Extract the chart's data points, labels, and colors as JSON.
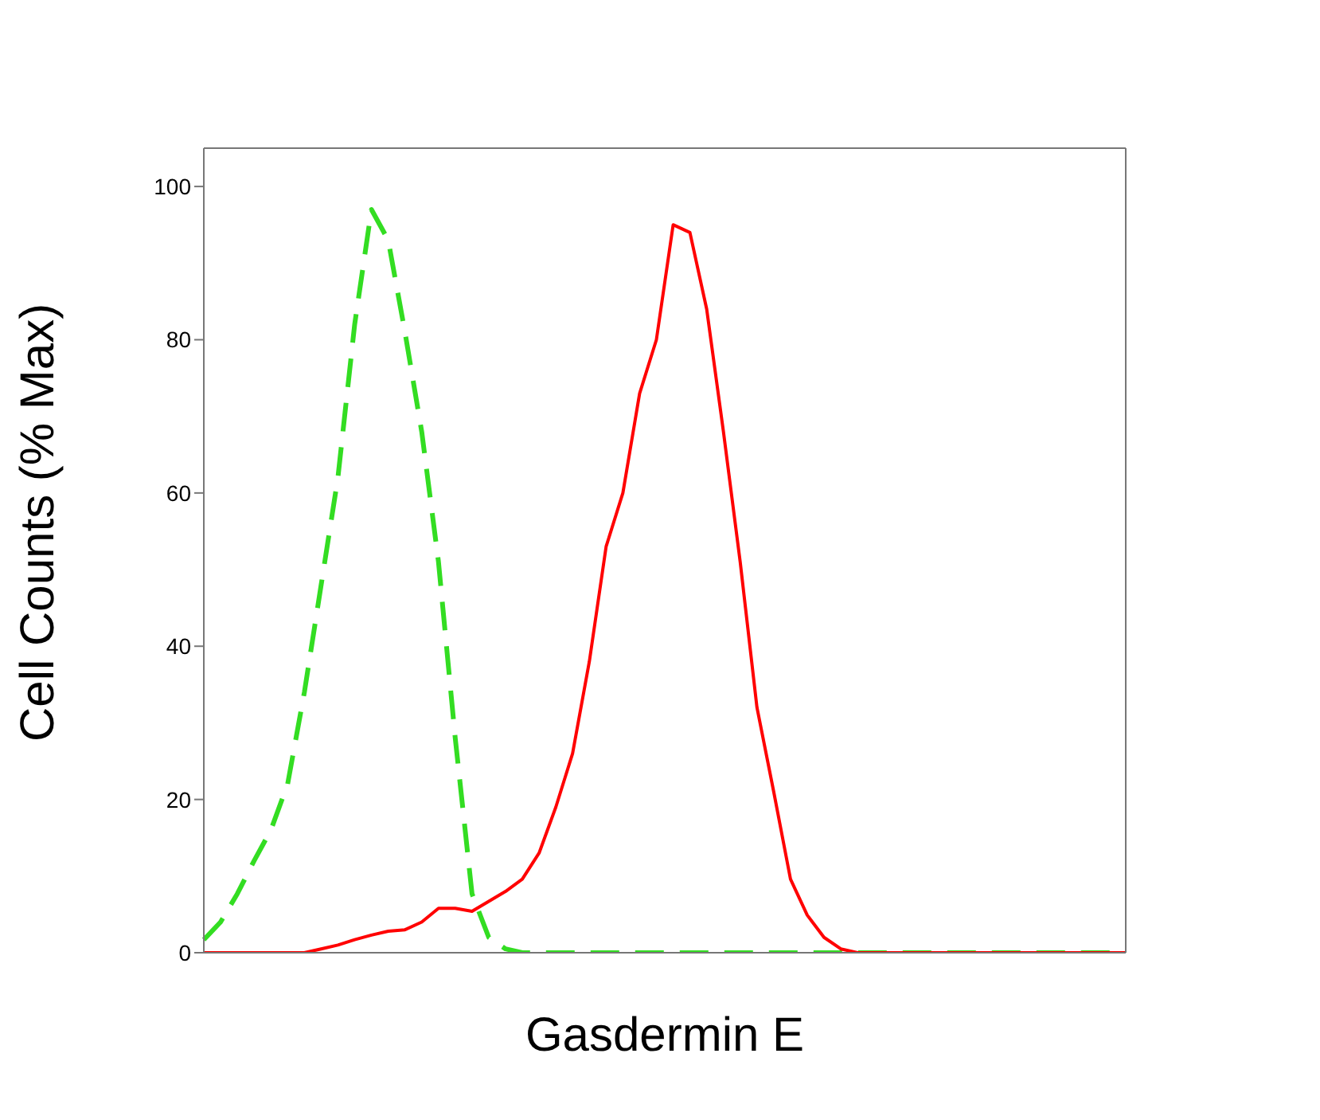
{
  "chart_data": {
    "type": "line",
    "xlabel": "Gasdermin E",
    "ylabel": "Cell Counts (% Max)",
    "categories": [
      null,
      null,
      null,
      null,
      null,
      null,
      null,
      null,
      null,
      null,
      null,
      null,
      null,
      null,
      null,
      null,
      null,
      null,
      null,
      null,
      null,
      null,
      null,
      null,
      null,
      null,
      null,
      null,
      null,
      null,
      null,
      null,
      null,
      null,
      null,
      null,
      null,
      null,
      null,
      null,
      null,
      null,
      null,
      null,
      null,
      null,
      null,
      null,
      null,
      null,
      null,
      null,
      null,
      null,
      null,
      null
    ],
    "series": [
      {
        "color": "#33dd22",
        "line_style": "dashed",
        "values": [
          1.7,
          4,
          7.7,
          12,
          16,
          22,
          34,
          48,
          62,
          82,
          97,
          93,
          81,
          68,
          51,
          28,
          7.7,
          2,
          0.5,
          0,
          0,
          0,
          0,
          0,
          0,
          0,
          0,
          0,
          0,
          0,
          0,
          0,
          0,
          0,
          0,
          0,
          0,
          0,
          0,
          0,
          0,
          0,
          0,
          0,
          0,
          0,
          0,
          0,
          0,
          0,
          0,
          0,
          0,
          0,
          0,
          0
        ]
      },
      {
        "color": "#ff0000",
        "line_style": "solid",
        "values": [
          0,
          0,
          0,
          0,
          0,
          0,
          0,
          0.5,
          1,
          1.7,
          2.3,
          2.8,
          3,
          4,
          5.8,
          5.8,
          5.4,
          6.7,
          8,
          9.6,
          13,
          19,
          26,
          38,
          53,
          60,
          73,
          80,
          95,
          94,
          84,
          68,
          51,
          32,
          21,
          9.6,
          4.9,
          2,
          0.5,
          0,
          0,
          0,
          0,
          0,
          0,
          0,
          0,
          0,
          0,
          0,
          0,
          0,
          0,
          0,
          0,
          0
        ]
      }
    ],
    "ylim": [
      0,
      105
    ],
    "yticks": [
      0,
      20,
      40,
      60,
      80,
      100
    ],
    "tick_labels": "y",
    "marker": "none"
  }
}
